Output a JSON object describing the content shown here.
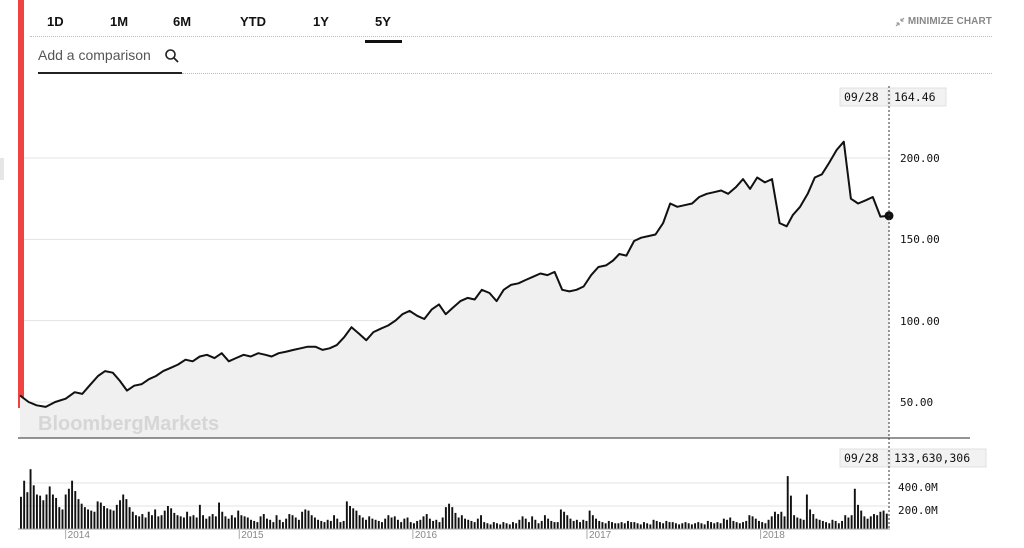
{
  "range_tabs": [
    {
      "label": "1D",
      "active": false
    },
    {
      "label": "1M",
      "active": false
    },
    {
      "label": "6M",
      "active": false
    },
    {
      "label": "YTD",
      "active": false
    },
    {
      "label": "1Y",
      "active": false
    },
    {
      "label": "5Y",
      "active": true
    }
  ],
  "minimize_label": "MINIMIZE CHART",
  "compare_placeholder": "Add a comparison",
  "watermark": "BloombergMarkets",
  "accent_color": "#f24141",
  "chart_data": {
    "type": "line",
    "price": {
      "readout_date": "09/28",
      "readout_value": "164.46",
      "y_ticks": [
        "200.00",
        "150.00",
        "100.00",
        "50.00"
      ],
      "ylim": [
        40,
        240
      ],
      "last_value": 164.46,
      "x_start": "2013-09-27",
      "x_end": "2018-09-28",
      "points": [
        [
          "2013-09-27",
          54
        ],
        [
          "2013-10-15",
          50
        ],
        [
          "2013-11-01",
          48
        ],
        [
          "2013-11-20",
          47
        ],
        [
          "2013-12-10",
          50
        ],
        [
          "2014-01-01",
          52
        ],
        [
          "2014-01-20",
          56
        ],
        [
          "2014-02-05",
          55
        ],
        [
          "2014-02-20",
          60
        ],
        [
          "2014-03-10",
          66
        ],
        [
          "2014-03-25",
          69
        ],
        [
          "2014-04-10",
          68
        ],
        [
          "2014-04-25",
          63
        ],
        [
          "2014-05-10",
          57
        ],
        [
          "2014-05-25",
          60
        ],
        [
          "2014-06-10",
          61
        ],
        [
          "2014-06-25",
          64
        ],
        [
          "2014-07-10",
          66
        ],
        [
          "2014-07-25",
          69
        ],
        [
          "2014-08-10",
          71
        ],
        [
          "2014-08-25",
          73
        ],
        [
          "2014-09-10",
          76
        ],
        [
          "2014-09-25",
          75
        ],
        [
          "2014-10-10",
          78
        ],
        [
          "2014-10-25",
          79
        ],
        [
          "2014-11-10",
          77
        ],
        [
          "2014-11-25",
          80
        ],
        [
          "2014-12-10",
          75
        ],
        [
          "2014-12-25",
          77
        ],
        [
          "2015-01-10",
          79
        ],
        [
          "2015-01-25",
          78
        ],
        [
          "2015-02-10",
          80
        ],
        [
          "2015-02-25",
          79
        ],
        [
          "2015-03-10",
          78
        ],
        [
          "2015-03-25",
          80
        ],
        [
          "2015-04-10",
          81
        ],
        [
          "2015-04-25",
          82
        ],
        [
          "2015-05-10",
          83
        ],
        [
          "2015-05-25",
          84
        ],
        [
          "2015-06-10",
          84
        ],
        [
          "2015-06-25",
          82
        ],
        [
          "2015-07-10",
          83
        ],
        [
          "2015-07-25",
          85
        ],
        [
          "2015-08-10",
          90
        ],
        [
          "2015-08-25",
          96
        ],
        [
          "2015-09-10",
          92
        ],
        [
          "2015-09-25",
          88
        ],
        [
          "2015-10-10",
          93
        ],
        [
          "2015-10-25",
          95
        ],
        [
          "2015-11-10",
          97
        ],
        [
          "2015-11-25",
          100
        ],
        [
          "2015-12-10",
          104
        ],
        [
          "2015-12-25",
          106
        ],
        [
          "2016-01-10",
          103
        ],
        [
          "2016-01-25",
          101
        ],
        [
          "2016-02-10",
          107
        ],
        [
          "2016-02-25",
          110
        ],
        [
          "2016-03-10",
          104
        ],
        [
          "2016-03-25",
          108
        ],
        [
          "2016-04-10",
          112
        ],
        [
          "2016-04-25",
          114
        ],
        [
          "2016-05-10",
          113
        ],
        [
          "2016-05-25",
          119
        ],
        [
          "2016-06-10",
          117
        ],
        [
          "2016-06-25",
          112
        ],
        [
          "2016-07-10",
          119
        ],
        [
          "2016-07-25",
          122
        ],
        [
          "2016-08-10",
          123
        ],
        [
          "2016-08-25",
          125
        ],
        [
          "2016-09-10",
          127
        ],
        [
          "2016-09-25",
          129
        ],
        [
          "2016-10-10",
          128
        ],
        [
          "2016-10-25",
          130
        ],
        [
          "2016-11-10",
          119
        ],
        [
          "2016-11-25",
          118
        ],
        [
          "2016-12-10",
          119
        ],
        [
          "2016-12-25",
          121
        ],
        [
          "2017-01-10",
          128
        ],
        [
          "2017-01-25",
          133
        ],
        [
          "2017-02-10",
          134
        ],
        [
          "2017-02-25",
          137
        ],
        [
          "2017-03-10",
          141
        ],
        [
          "2017-03-25",
          140
        ],
        [
          "2017-04-10",
          149
        ],
        [
          "2017-04-25",
          151
        ],
        [
          "2017-05-10",
          152
        ],
        [
          "2017-05-25",
          153
        ],
        [
          "2017-06-10",
          160
        ],
        [
          "2017-06-25",
          172
        ],
        [
          "2017-07-10",
          170
        ],
        [
          "2017-07-25",
          171
        ],
        [
          "2017-08-10",
          172
        ],
        [
          "2017-08-25",
          176
        ],
        [
          "2017-09-10",
          178
        ],
        [
          "2017-09-25",
          179
        ],
        [
          "2017-10-10",
          180
        ],
        [
          "2017-10-25",
          178
        ],
        [
          "2017-11-10",
          182
        ],
        [
          "2017-11-25",
          187
        ],
        [
          "2017-12-10",
          181
        ],
        [
          "2017-12-25",
          188
        ],
        [
          "2018-01-10",
          185
        ],
        [
          "2018-01-25",
          187
        ],
        [
          "2018-02-10",
          160
        ],
        [
          "2018-02-25",
          158
        ],
        [
          "2018-03-10",
          165
        ],
        [
          "2018-03-25",
          170
        ],
        [
          "2018-04-10",
          178
        ],
        [
          "2018-04-25",
          188
        ],
        [
          "2018-05-10",
          190
        ],
        [
          "2018-05-25",
          197
        ],
        [
          "2018-06-10",
          205
        ],
        [
          "2018-06-25",
          210
        ],
        [
          "2018-07-10",
          175
        ],
        [
          "2018-07-25",
          172
        ],
        [
          "2018-08-10",
          174
        ],
        [
          "2018-08-25",
          176
        ],
        [
          "2018-09-10",
          164
        ],
        [
          "2018-09-28",
          164.46
        ]
      ]
    },
    "volume": {
      "readout_date": "09/28",
      "readout_value": "133,630,306",
      "y_ticks": [
        "400.0M",
        "200.0M"
      ],
      "ylim": [
        0,
        600
      ],
      "unit": "M",
      "series": [
        280,
        420,
        320,
        520,
        380,
        300,
        290,
        250,
        300,
        370,
        300,
        270,
        190,
        170,
        300,
        350,
        420,
        330,
        260,
        220,
        190,
        170,
        160,
        150,
        240,
        230,
        200,
        180,
        170,
        160,
        210,
        250,
        300,
        260,
        190,
        150,
        120,
        110,
        130,
        100,
        150,
        120,
        170,
        110,
        120,
        160,
        200,
        180,
        140,
        120,
        110,
        100,
        150,
        110,
        120,
        100,
        210,
        120,
        90,
        110,
        130,
        110,
        230,
        150,
        110,
        90,
        120,
        100,
        160,
        120,
        110,
        100,
        80,
        70,
        60,
        110,
        130,
        90,
        80,
        60,
        120,
        80,
        60,
        90,
        130,
        120,
        100,
        80,
        150,
        170,
        160,
        120,
        100,
        80,
        70,
        60,
        80,
        70,
        120,
        90,
        60,
        70,
        240,
        200,
        180,
        160,
        120,
        100,
        80,
        110,
        90,
        80,
        70,
        60,
        90,
        120,
        100,
        110,
        80,
        60,
        90,
        100,
        60,
        50,
        70,
        80,
        110,
        130,
        90,
        70,
        80,
        60,
        100,
        190,
        220,
        190,
        140,
        100,
        120,
        90,
        80,
        70,
        60,
        90,
        120,
        60,
        50,
        40,
        60,
        50,
        40,
        60,
        50,
        40,
        60,
        50,
        80,
        110,
        90,
        60,
        110,
        80,
        50,
        70,
        120,
        90,
        70,
        60,
        60,
        170,
        150,
        120,
        90,
        70,
        80,
        60,
        80,
        70,
        160,
        120,
        90,
        70,
        60,
        50,
        70,
        60,
        50,
        50,
        60,
        50,
        70,
        60,
        60,
        50,
        40,
        60,
        50,
        40,
        80,
        70,
        60,
        50,
        70,
        60,
        60,
        50,
        40,
        50,
        60,
        50,
        40,
        50,
        60,
        50,
        40,
        70,
        60,
        50,
        60,
        50,
        90,
        80,
        100,
        70,
        60,
        50,
        60,
        70,
        120,
        110,
        90,
        70,
        60,
        50,
        80,
        110,
        150,
        130,
        150,
        110,
        460,
        290,
        120,
        100,
        90,
        80,
        300,
        170,
        130,
        90,
        80,
        70,
        60,
        50,
        80,
        70,
        50,
        70,
        120,
        100,
        120,
        350,
        210,
        160,
        110,
        90,
        110,
        130,
        120,
        150,
        160,
        133.63
      ]
    },
    "x_tick_labels": [
      "2014",
      "2015",
      "2016",
      "2017",
      "2018"
    ],
    "x_tick_dates": [
      "2014-01-01",
      "2015-01-01",
      "2016-01-01",
      "2017-01-01",
      "2018-01-01"
    ]
  }
}
